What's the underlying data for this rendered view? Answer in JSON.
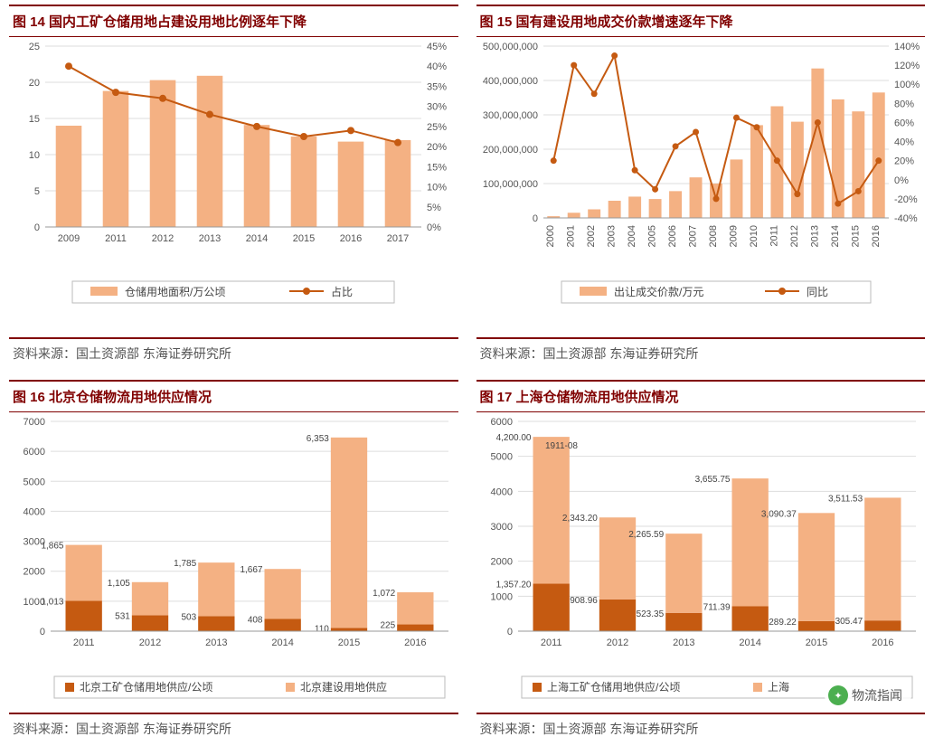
{
  "colors": {
    "bar_light": "#f4b183",
    "bar_dark": "#c55a11",
    "line": "#c55a11",
    "border": "#800000",
    "grid": "#dddddd",
    "axis": "#999999",
    "text": "#555555"
  },
  "source_text": "资料来源：国土资源部 东海证券研究所",
  "watermark": "物流指闻",
  "chart14": {
    "title": "图 14  国内工矿仓储用地占建设用地比例逐年下降",
    "type": "bar+line-dual-axis",
    "categories": [
      "2009",
      "2011",
      "2012",
      "2013",
      "2014",
      "2015",
      "2016",
      "2017"
    ],
    "bars": [
      14.0,
      18.8,
      20.3,
      20.9,
      14.1,
      12.5,
      11.8,
      12.0
    ],
    "line": [
      40.0,
      33.5,
      32.0,
      28.0,
      25.0,
      22.5,
      24.0,
      21.0
    ],
    "ylim_left": [
      0,
      25
    ],
    "ytick_left_step": 5,
    "ylim_right": [
      0,
      45
    ],
    "ytick_right_step": 5,
    "legend_bar": "仓储用地面积/万公顷",
    "legend_line": "占比",
    "bar_color": "#f4b183",
    "line_color": "#c55a11",
    "bar_width_ratio": 0.55
  },
  "chart15": {
    "title": "图 15  国有建设用地成交价款增速逐年下降",
    "type": "bar+line-dual-axis",
    "categories": [
      "2000",
      "2001",
      "2002",
      "2003",
      "2004",
      "2005",
      "2006",
      "2007",
      "2008",
      "2009",
      "2010",
      "2011",
      "2012",
      "2013",
      "2014",
      "2015",
      "2016"
    ],
    "bars": [
      5000000,
      15000000,
      25000000,
      50000000,
      62000000,
      55000000,
      78000000,
      118000000,
      100000000,
      170000000,
      270000000,
      325000000,
      280000000,
      435000000,
      345000000,
      310000000,
      365000000
    ],
    "line": [
      20,
      120,
      90,
      130,
      10,
      -10,
      35,
      50,
      -20,
      65,
      55,
      20,
      -15,
      60,
      -25,
      -12,
      20
    ],
    "ylim_left": [
      0,
      500000000
    ],
    "ytick_left_step": 100000000,
    "ylim_right": [
      -40,
      140
    ],
    "ytick_right_step": 20,
    "legend_bar": "出让成交价款/万元",
    "legend_line": "同比",
    "bar_color": "#f4b183",
    "line_color": "#c55a11",
    "bar_width_ratio": 0.62
  },
  "chart16": {
    "title": "图 16 北京仓储物流用地供应情况",
    "type": "stacked-bar",
    "categories": [
      "2011",
      "2012",
      "2013",
      "2014",
      "2015",
      "2016"
    ],
    "series_dark": [
      1013,
      531,
      503,
      408,
      110,
      225
    ],
    "series_light": [
      1865,
      1105,
      1785,
      1667,
      6353,
      1072
    ],
    "ylim": [
      0,
      7000
    ],
    "ytick_step": 1000,
    "legend_dark": "北京工矿仓储用地供应/公顷",
    "legend_light": "北京建设用地供应",
    "color_dark": "#c55a11",
    "color_light": "#f4b183",
    "bar_width_ratio": 0.55,
    "show_values": true
  },
  "chart17": {
    "title": "图 17  上海仓储物流用地供应情况",
    "type": "stacked-bar",
    "categories": [
      "2011",
      "2012",
      "2013",
      "2014",
      "2015",
      "2016"
    ],
    "top_label": "1911-08",
    "series_dark": [
      1357.2,
      908.96,
      523.35,
      711.39,
      289.22,
      305.47
    ],
    "series_light": [
      4200.0,
      2343.2,
      2265.59,
      3655.75,
      3090.37,
      3511.53
    ],
    "ylim": [
      0,
      6000
    ],
    "ytick_step": 1000,
    "legend_dark": "上海工矿仓储用地供应/公顷",
    "legend_light": "上海",
    "color_dark": "#c55a11",
    "color_light": "#f4b183",
    "bar_width_ratio": 0.55,
    "show_values": true,
    "value_fmt": 2
  }
}
